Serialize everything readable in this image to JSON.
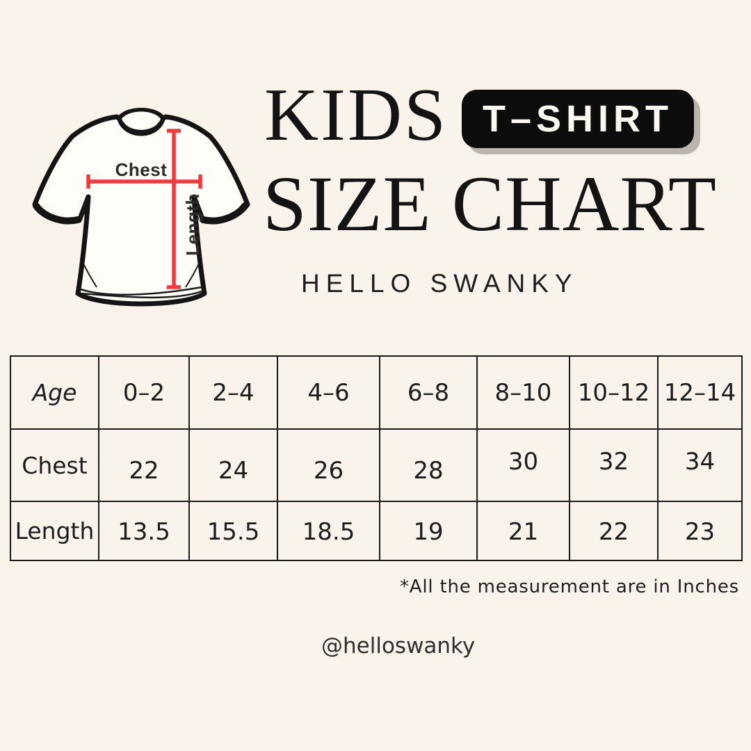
{
  "page": {
    "background_color": "#faf3ec",
    "accent_red": "#f4393c",
    "badge_black": "#0c0c0c"
  },
  "header": {
    "title_line1": "KIDS",
    "badge_label": "T–SHIRT",
    "title_line2": "SIZE CHART",
    "brand": "HELLO SWANKY"
  },
  "diagram": {
    "chest_label": "Chest",
    "length_label": "Length",
    "line_color": "#f4393c"
  },
  "size_table": {
    "header_row": [
      "Age",
      "0–2",
      "2–4",
      "4–6",
      "6–8",
      "8–10",
      "10–12",
      "12–14"
    ],
    "rows": [
      {
        "label": "Chest",
        "values": [
          "22",
          "24",
          "26",
          "28",
          "30",
          "32",
          "34"
        ]
      },
      {
        "label": "Length",
        "values": [
          "13.5",
          "15.5",
          "18.5",
          "19",
          "21",
          "22",
          "23"
        ]
      }
    ]
  },
  "footer": {
    "note": "*All the measurement are in Inches",
    "handle": "@helloswanky"
  }
}
